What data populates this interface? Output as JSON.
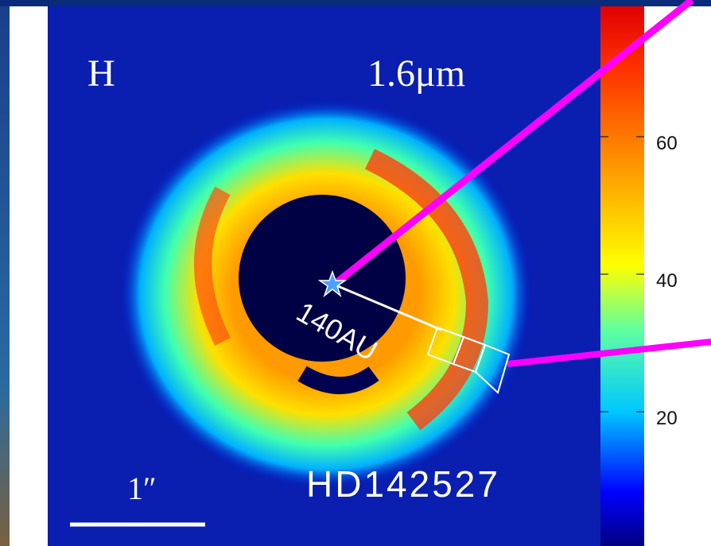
{
  "image": {
    "band": "H",
    "wavelength": "1.6μm",
    "distance_label": "140AU",
    "target": "HD142527",
    "scale_label": "1″"
  },
  "colorbar": {
    "tick_labels": [
      "60",
      "40",
      "20"
    ]
  }
}
